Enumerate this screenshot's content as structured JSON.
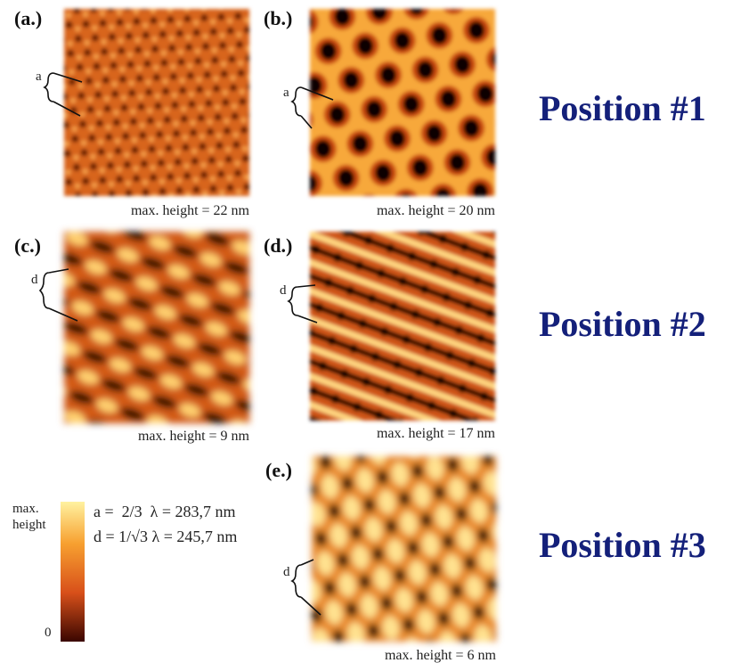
{
  "panels": [
    {
      "label": "(a.)",
      "caption": "max. height = 22 nm",
      "scale_label": "a"
    },
    {
      "label": "(b.)",
      "caption": "max. height = 20 nm",
      "scale_label": "a"
    },
    {
      "label": "(c.)",
      "caption": "max. height = 9 nm",
      "scale_label": "d"
    },
    {
      "label": "(d.)",
      "caption": "max. height = 17 nm",
      "scale_label": "d"
    },
    {
      "label": "(e.)",
      "caption": "max. height = 6 nm",
      "scale_label": "d"
    }
  ],
  "positions": [
    "Position #1",
    "Position #2",
    "Position #3"
  ],
  "colorbar": {
    "top_label": [
      "max.",
      "height"
    ],
    "bottom_label": "0"
  },
  "formulas": [
    "a =  2/3  λ = 283,7 nm",
    "d = 1/√3 λ = 245,7 nm"
  ]
}
